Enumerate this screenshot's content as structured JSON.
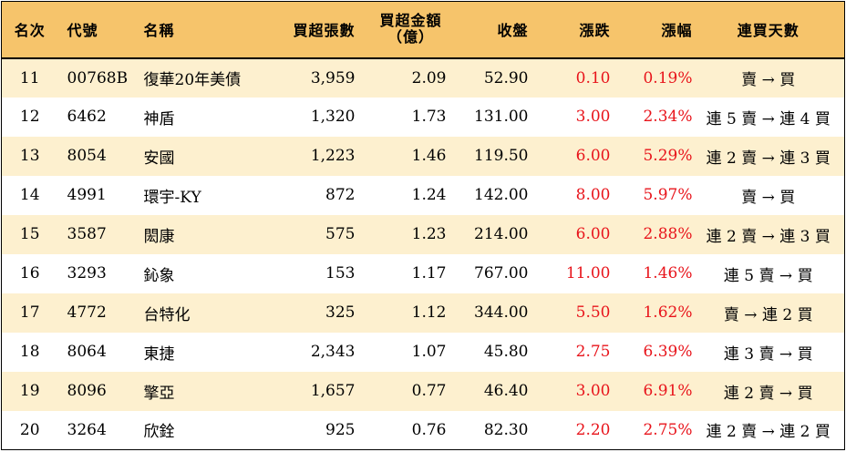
{
  "headers": {
    "rank": "名次",
    "code": "代號",
    "name": "名稱",
    "net_buy_lots": "買超張數",
    "net_buy_amount_line1": "買超金額",
    "net_buy_amount_line2": "（億）",
    "close": "收盤",
    "change": "漲跌",
    "change_pct": "漲幅",
    "streak": "連買天數"
  },
  "rows": [
    {
      "rank": "11",
      "code": "00768B",
      "name": "復華20年美債",
      "lots": "3,959",
      "amount": "2.09",
      "close": "52.90",
      "change": "0.10",
      "pct": "0.19%",
      "streak": "賣 → 買"
    },
    {
      "rank": "12",
      "code": "6462",
      "name": "神盾",
      "lots": "1,320",
      "amount": "1.73",
      "close": "131.00",
      "change": "3.00",
      "pct": "2.34%",
      "streak": "連 5 賣 → 連 4 買"
    },
    {
      "rank": "13",
      "code": "8054",
      "name": "安國",
      "lots": "1,223",
      "amount": "1.46",
      "close": "119.50",
      "change": "6.00",
      "pct": "5.29%",
      "streak": "連 2 賣 → 連 3 買"
    },
    {
      "rank": "14",
      "code": "4991",
      "name": "環宇-KY",
      "lots": "872",
      "amount": "1.24",
      "close": "142.00",
      "change": "8.00",
      "pct": "5.97%",
      "streak": "賣 → 買"
    },
    {
      "rank": "15",
      "code": "3587",
      "name": "閎康",
      "lots": "575",
      "amount": "1.23",
      "close": "214.00",
      "change": "6.00",
      "pct": "2.88%",
      "streak": "連 2 賣 → 連 3 買"
    },
    {
      "rank": "16",
      "code": "3293",
      "name": "鈊象",
      "lots": "153",
      "amount": "1.17",
      "close": "767.00",
      "change": "11.00",
      "pct": "1.46%",
      "streak": "連 5 賣 → 買"
    },
    {
      "rank": "17",
      "code": "4772",
      "name": "台特化",
      "lots": "325",
      "amount": "1.12",
      "close": "344.00",
      "change": "5.50",
      "pct": "1.62%",
      "streak": "賣 → 連 2 買"
    },
    {
      "rank": "18",
      "code": "8064",
      "name": "東捷",
      "lots": "2,343",
      "amount": "1.07",
      "close": "45.80",
      "change": "2.75",
      "pct": "6.39%",
      "streak": "連 3 賣 → 買"
    },
    {
      "rank": "19",
      "code": "8096",
      "name": "擎亞",
      "lots": "1,657",
      "amount": "0.77",
      "close": "46.40",
      "change": "3.00",
      "pct": "6.91%",
      "streak": "連 2 賣 → 買"
    },
    {
      "rank": "20",
      "code": "3264",
      "name": "欣銓",
      "lots": "925",
      "amount": "0.76",
      "close": "82.30",
      "change": "2.20",
      "pct": "2.75%",
      "streak": "連 2 賣 → 連 2 買"
    }
  ],
  "colors": {
    "header_bg": "#f6c46b",
    "odd_row_bg": "#fdf0cf",
    "even_row_bg": "#ffffff",
    "up_red": "#e8141b"
  }
}
